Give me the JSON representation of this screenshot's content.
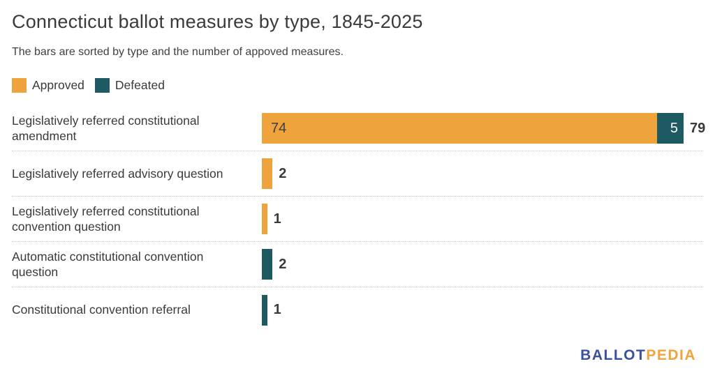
{
  "page": {
    "title": "Connecticut ballot measures by type, 1845-2025",
    "subtitle": "The bars are sorted by type and the number of appoved measures."
  },
  "legend": {
    "items": [
      {
        "label": "Approved",
        "color": "#efa33c"
      },
      {
        "label": "Defeated",
        "color": "#1e5a62"
      }
    ]
  },
  "chart_data": {
    "type": "bar",
    "orientation": "horizontal",
    "stacked": true,
    "title": "Connecticut ballot measures by type, 1845-2025",
    "subtitle": "The bars are sorted by type and the number of appoved measures.",
    "categories": [
      "Legislatively referred constitutional amendment",
      "Legislatively referred advisory question",
      "Legislatively referred constitutional convention question",
      "Automatic constitutional convention question",
      "Constitutional convention referral"
    ],
    "series": [
      {
        "name": "Approved",
        "color": "#efa33c",
        "values": [
          74,
          2,
          1,
          0,
          0
        ]
      },
      {
        "name": "Defeated",
        "color": "#1e5a62",
        "values": [
          5,
          0,
          0,
          2,
          1
        ]
      }
    ],
    "totals": [
      79,
      2,
      1,
      2,
      1
    ],
    "xlim": [
      0,
      79
    ],
    "grid": false,
    "legend_position": "top-left"
  },
  "colors": {
    "approved": "#efa33c",
    "defeated": "#1e5a62",
    "text": "#3a3a3a",
    "separator": "#c8c8c8"
  },
  "footer": {
    "logo_part1": "BALLOT",
    "logo_part2": "PEDIA",
    "logo_color1": "#3b50a2",
    "logo_color2": "#f2a33d"
  }
}
